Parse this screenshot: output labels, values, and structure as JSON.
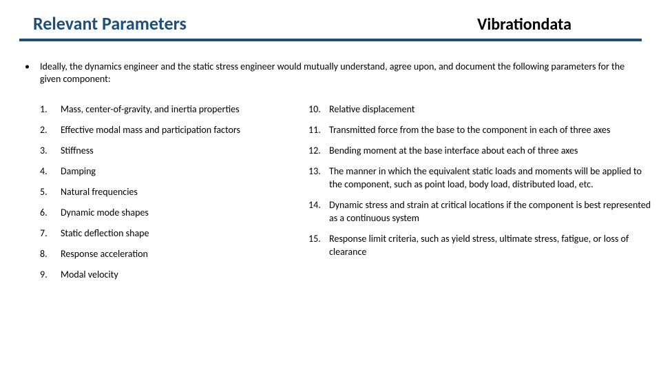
{
  "colors": {
    "title": "#1f4e79",
    "underline": "#1f4e79"
  },
  "header": {
    "title": "Relevant Parameters",
    "brand": "Vibrationdata"
  },
  "intro": {
    "bullet": "•",
    "text": "Ideally, the dynamics engineer and the static stress engineer would mutually understand, agree upon, and document the following parameters for the given component:"
  },
  "left": [
    {
      "n": "1.",
      "t": "Mass, center-of-gravity, and inertia properties"
    },
    {
      "n": "2.",
      "t": "Effective modal mass and participation factors"
    },
    {
      "n": "3.",
      "t": "Stiffness"
    },
    {
      "n": "4.",
      "t": "Damping"
    },
    {
      "n": "5.",
      "t": "Natural frequencies"
    },
    {
      "n": "6.",
      "t": "Dynamic mode shapes"
    },
    {
      "n": "7.",
      "t": "Static deflection shape"
    },
    {
      "n": "8.",
      "t": "Response acceleration"
    },
    {
      "n": "9.",
      "t": "Modal velocity"
    }
  ],
  "right": [
    {
      "n": "10.",
      "t": " Relative displacement"
    },
    {
      "n": "11.",
      "t": "Transmitted force from the base to the component in each of three axes"
    },
    {
      "n": "12.",
      "t": "Bending moment at the base interface about each of three axes"
    },
    {
      "n": "13.",
      "t": "The manner in which the equivalent static loads and moments will be applied to the component, such as point load, body load, distributed load, etc."
    },
    {
      "n": "14.",
      "t": "Dynamic stress and strain at critical locations if the component is best represented as a continuous system"
    },
    {
      "n": "15.",
      "t": "Response limit criteria, such as yield stress, ultimate stress, fatigue, or loss of clearance"
    }
  ]
}
